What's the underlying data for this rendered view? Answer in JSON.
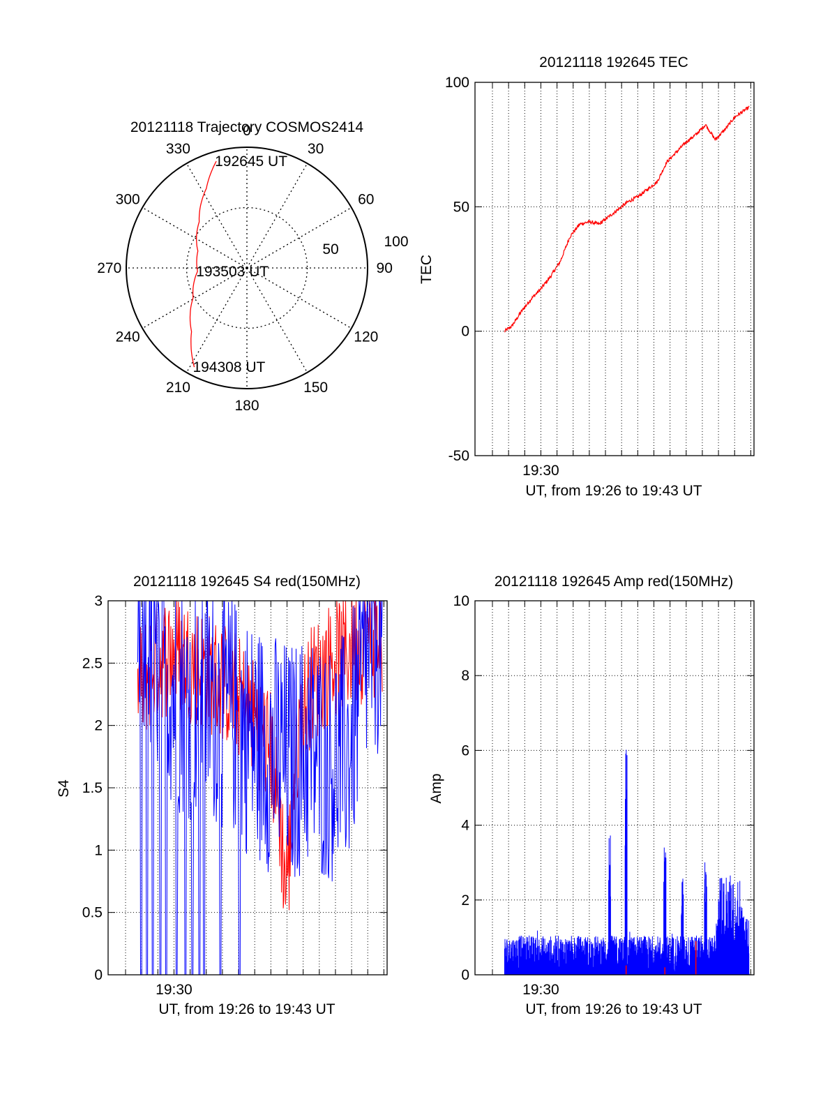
{
  "page": {
    "background": "#ffffff"
  },
  "colors": {
    "red": "#ff0000",
    "blue": "#0000ff",
    "axis": "#000000",
    "grid": "#000000"
  },
  "chart_data": [
    {
      "id": "trajectory",
      "type": "polar",
      "title": "20121118 Trajectory COSMOS2414",
      "angle_labels": [
        "0",
        "30",
        "60",
        "90",
        "120",
        "150",
        "180",
        "210",
        "240",
        "270",
        "300",
        "330"
      ],
      "angles_deg": [
        0,
        30,
        60,
        90,
        120,
        150,
        180,
        210,
        240,
        270,
        300,
        330
      ],
      "radial_labels": [
        "50",
        "100"
      ],
      "radial_values": [
        50,
        100
      ],
      "rmax": 100,
      "track": {
        "color": "red",
        "points": [
          {
            "az": 344,
            "r": 92
          },
          {
            "az": 333,
            "r": 74
          },
          {
            "az": 314,
            "r": 55
          },
          {
            "az": 289,
            "r": 43
          },
          {
            "az": 266,
            "r": 41
          },
          {
            "az": 241,
            "r": 51
          },
          {
            "az": 221,
            "r": 70
          },
          {
            "az": 208,
            "r": 93
          }
        ]
      },
      "annotations": [
        {
          "text": "192645 UT",
          "az": 344,
          "r": 92
        },
        {
          "text": "193503 UT",
          "az": 266,
          "r": 41
        },
        {
          "text": "194308 UT",
          "az": 208,
          "r": 93
        }
      ]
    },
    {
      "id": "tec",
      "type": "line",
      "title": "20121118 192645 TEC",
      "xlabel": "UT, from 19:26 to 19:43 UT",
      "ylabel": "TEC",
      "xlim": [
        19.432,
        19.72
      ],
      "ylim": [
        -50,
        100
      ],
      "yticks": [
        -50,
        0,
        50,
        100
      ],
      "xtick_label": "19:30",
      "xtick_value": 19.5,
      "grid": true,
      "series": [
        {
          "color": "red",
          "x": [
            19.4625,
            19.47,
            19.48,
            19.49,
            19.5,
            19.51,
            19.52,
            19.53,
            19.54,
            19.55,
            19.56,
            19.57,
            19.58,
            19.59,
            19.6,
            19.61,
            19.62,
            19.63,
            19.64,
            19.65,
            19.66,
            19.67,
            19.68,
            19.69,
            19.7,
            19.715
          ],
          "y": [
            0,
            2,
            8,
            13,
            17,
            22,
            28,
            38,
            43,
            44,
            43,
            46,
            49,
            52,
            54,
            57,
            60,
            68,
            72,
            76,
            79,
            83,
            77,
            81,
            86,
            90
          ]
        }
      ]
    },
    {
      "id": "s4",
      "type": "line",
      "title": "20121118 192645 S4 red(150MHz)",
      "xlabel": "UT, from 19:26 to 19:43 UT",
      "ylabel": "S4",
      "xlim": [
        19.432,
        19.72
      ],
      "ylim": [
        0,
        3
      ],
      "yticks": [
        0,
        0.5,
        1,
        1.5,
        2,
        2.5,
        3
      ],
      "ytick_labels": [
        "0",
        "0.5",
        "1",
        "1.5",
        "2",
        "2.5",
        "3"
      ],
      "xtick_label": "19:30",
      "xtick_value": 19.5,
      "grid": true,
      "series": [
        {
          "color": "red",
          "x": [
            19.4625,
            19.48,
            19.5,
            19.52,
            19.54,
            19.56,
            19.58,
            19.6,
            19.61,
            19.615,
            19.62,
            19.625,
            19.63,
            19.64,
            19.66,
            19.68,
            19.7,
            19.715
          ],
          "y": [
            2.1,
            2.3,
            2.4,
            2.3,
            2.2,
            2.1,
            1.9,
            1.6,
            1.0,
            0.55,
            0.8,
            1.5,
            1.8,
            2.1,
            2.3,
            2.4,
            2.5,
            2.5
          ],
          "noise": 0.5
        },
        {
          "color": "blue",
          "x": [
            19.4625,
            19.48,
            19.5,
            19.52,
            19.54,
            19.56,
            19.58,
            19.6,
            19.62,
            19.64,
            19.66,
            19.68,
            19.7,
            19.715
          ],
          "y": [
            2.2,
            2.0,
            1.7,
            1.6,
            1.6,
            1.5,
            1.3,
            1.2,
            1.1,
            1.2,
            1.1,
            1.2,
            2.0,
            2.2
          ],
          "noise": 0.9,
          "dropouts": [
            19.466,
            19.472,
            19.478,
            19.486,
            19.492,
            19.503,
            19.512,
            19.519,
            19.526,
            19.531,
            19.548,
            19.568
          ]
        }
      ]
    },
    {
      "id": "amp",
      "type": "line",
      "title": "20121118 192645 Amp red(150MHz)",
      "xlabel": "UT, from 19:26 to 19:43 UT",
      "ylabel": "Amp",
      "xlim": [
        19.432,
        19.72
      ],
      "ylim": [
        0,
        10
      ],
      "yticks": [
        0,
        2,
        4,
        6,
        8,
        10
      ],
      "xtick_label": "19:30",
      "xtick_value": 19.5,
      "grid": true,
      "series": [
        {
          "color": "blue",
          "baseline": 0.45,
          "noise": 0.5,
          "x_start": 19.4625,
          "x_end": 19.715,
          "spikes": [
            {
              "x": 19.571,
              "y": 3.8
            },
            {
              "x": 19.588,
              "y": 6.1
            },
            {
              "x": 19.628,
              "y": 4.0
            },
            {
              "x": 19.646,
              "y": 2.7
            },
            {
              "x": 19.67,
              "y": 3.1
            },
            {
              "x": 19.695,
              "y": 2.7
            }
          ]
        },
        {
          "color": "red",
          "x": [
            19.588,
            19.628,
            19.66
          ],
          "y": [
            0.25,
            0.2,
            0.9
          ]
        }
      ]
    }
  ]
}
